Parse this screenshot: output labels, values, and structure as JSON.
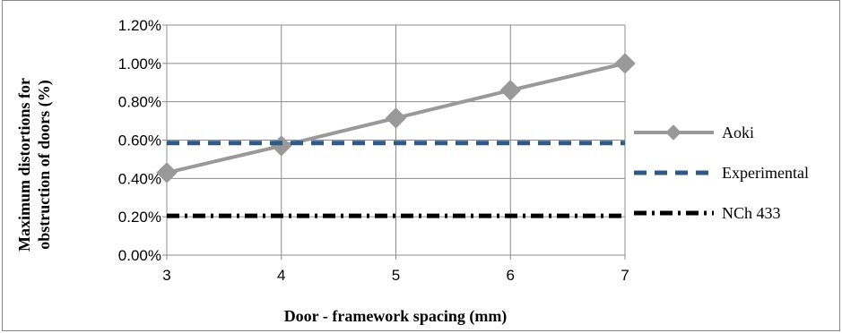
{
  "chart_data": {
    "type": "line",
    "x": [
      3,
      4,
      5,
      6,
      7
    ],
    "xlabel": "Door - framework spacing (mm)",
    "ylabel_lines": [
      "Maximum distortions for",
      "obstruction of doors (%)"
    ],
    "ylim": [
      0,
      1.2
    ],
    "yticks": [
      0,
      0.2,
      0.4,
      0.6,
      0.8,
      1.0,
      1.2
    ],
    "ytick_labels": [
      "0.00%",
      "0.20%",
      "0.40%",
      "0.60%",
      "0.80%",
      "1.00%",
      "1.20%"
    ],
    "xtick_labels": [
      "3",
      "4",
      "5",
      "6",
      "7"
    ],
    "grid": "horizontal-and-vertical",
    "legend_position": "right",
    "series": [
      {
        "name": "Aoki",
        "values": [
          0.43,
          0.57,
          0.715,
          0.86,
          1.0
        ],
        "color": "#999999",
        "style": "solid",
        "marker": "diamond"
      },
      {
        "name": "Experimental",
        "values": [
          0.585,
          0.585,
          0.585,
          0.585,
          0.585
        ],
        "color": "#2e5a8a",
        "style": "dashed",
        "marker": "none"
      },
      {
        "name": "NCh 433",
        "values": [
          0.205,
          0.205,
          0.205,
          0.205,
          0.205
        ],
        "color": "#000000",
        "style": "dash-dot",
        "marker": "none"
      }
    ]
  }
}
